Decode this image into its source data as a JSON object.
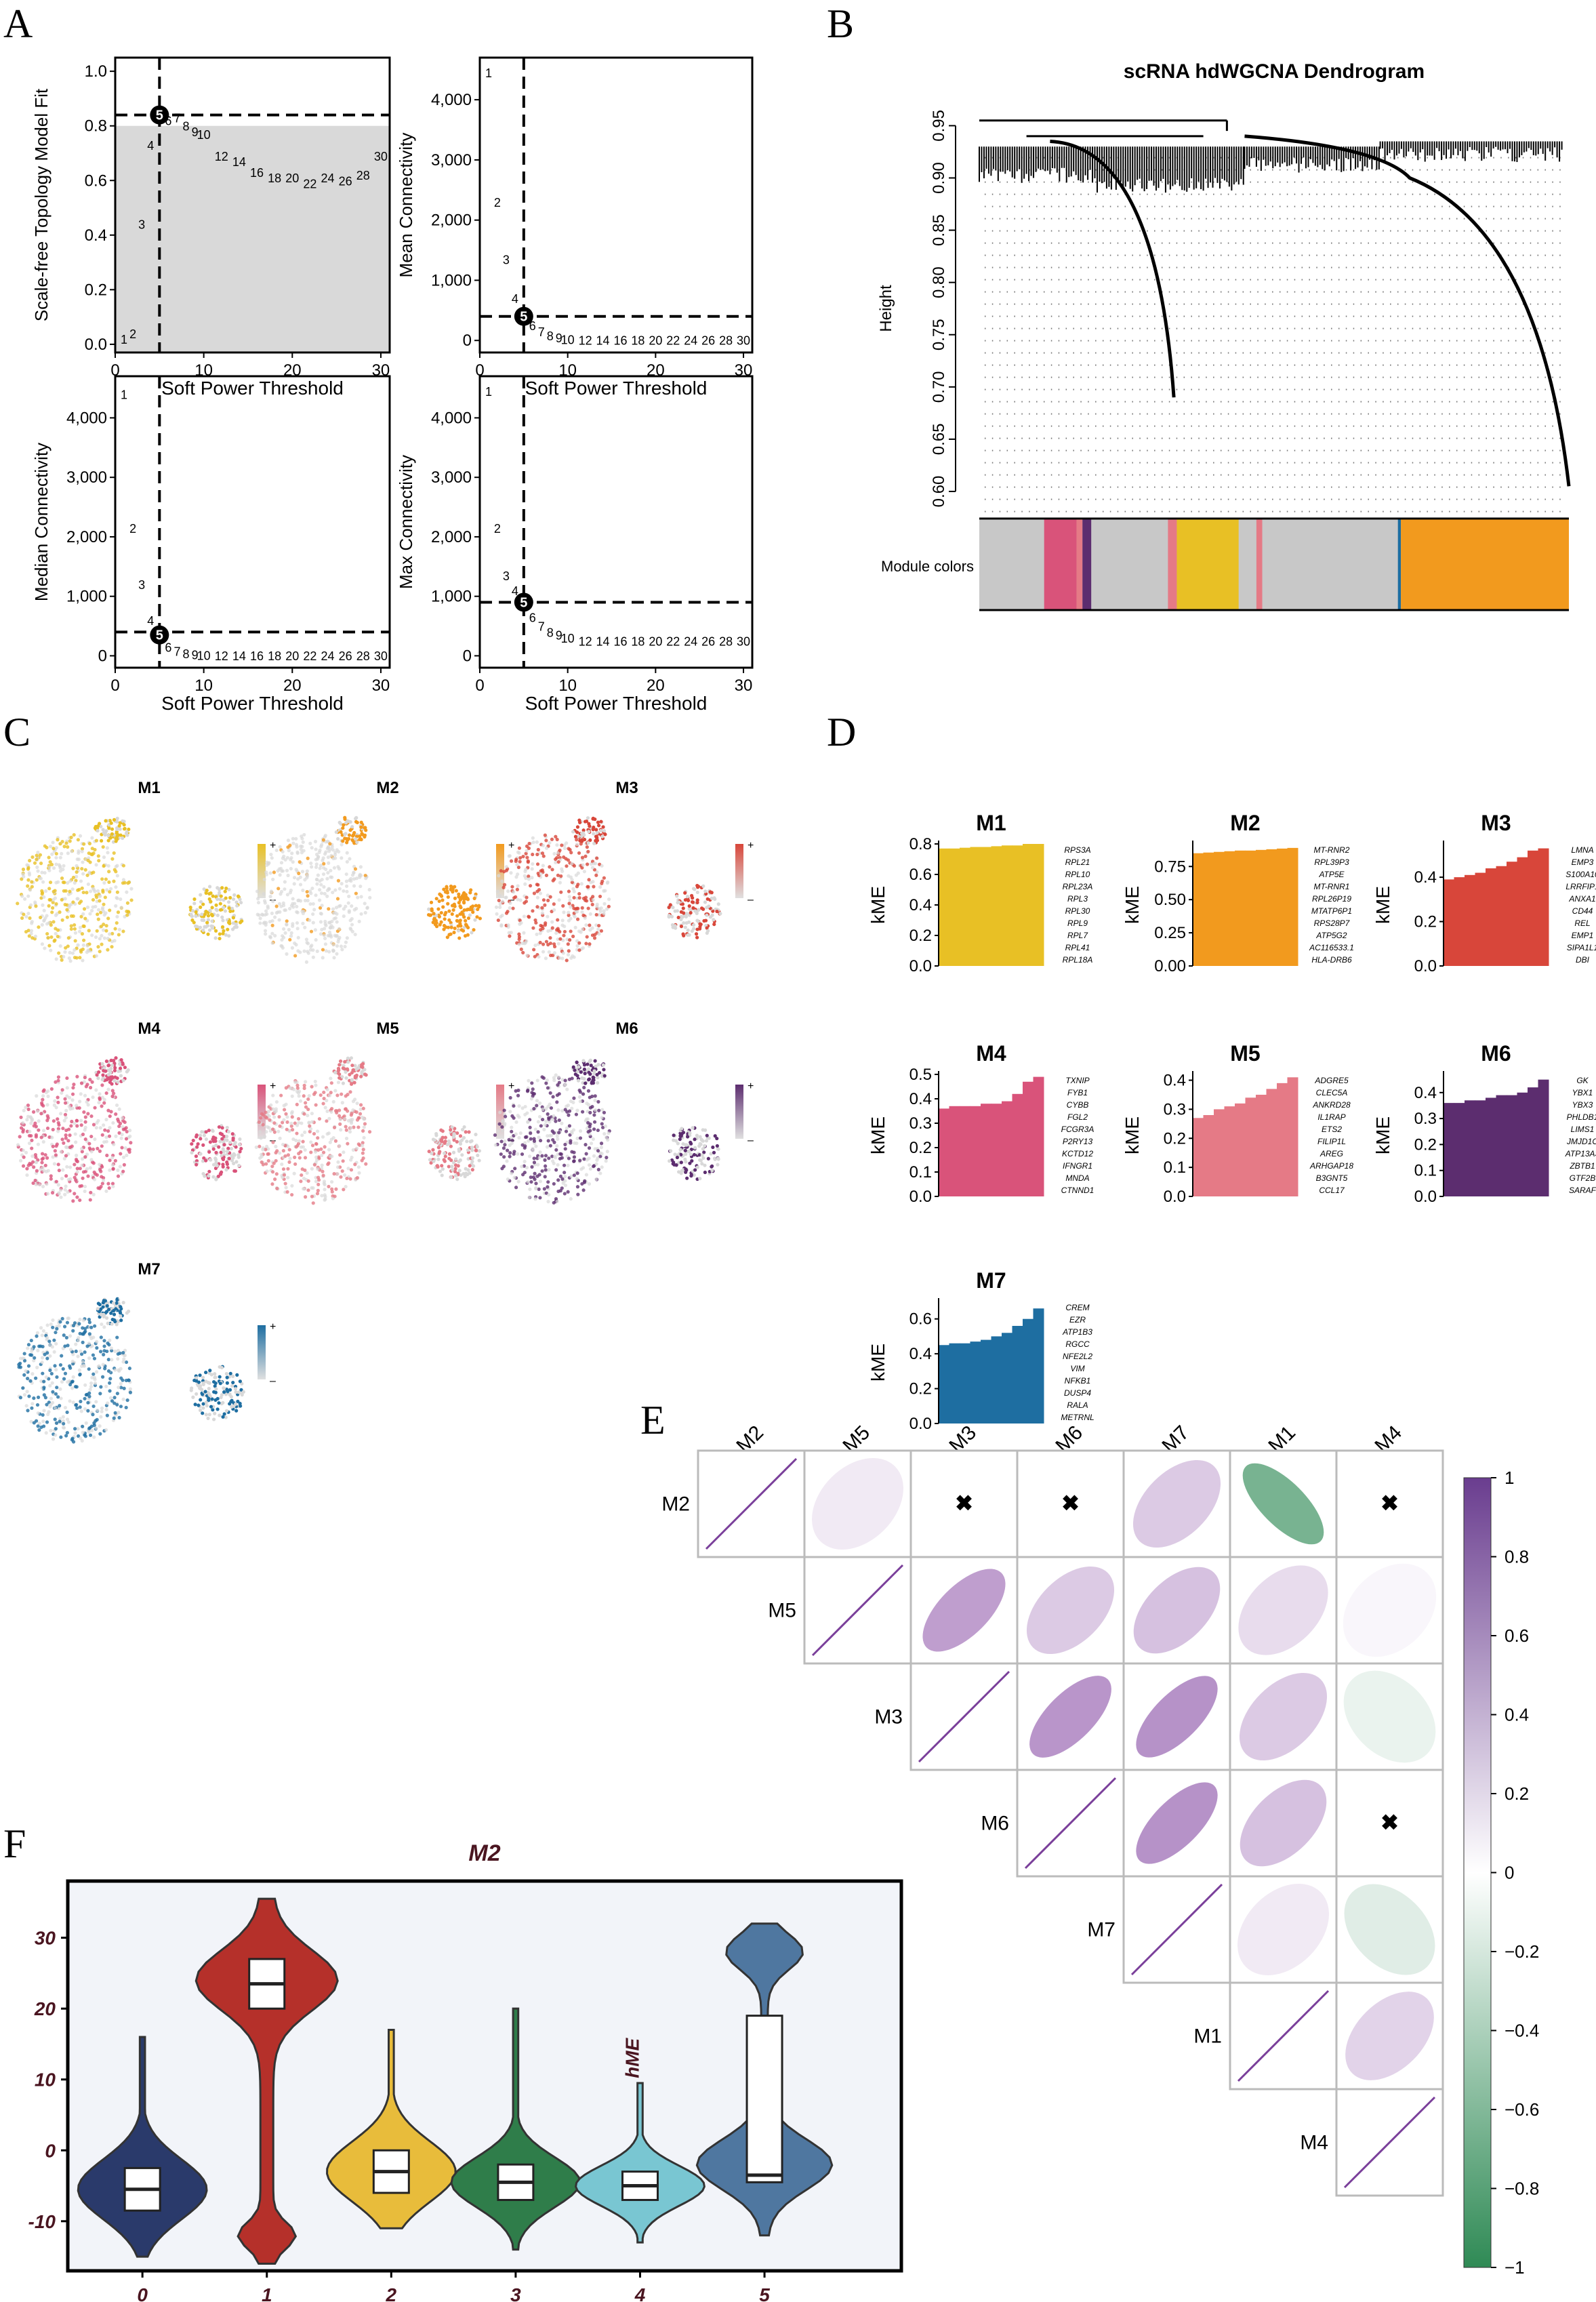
{
  "panel_labels": [
    "A",
    "B",
    "C",
    "D",
    "E",
    "F"
  ],
  "colors": {
    "M1": "#e8c025",
    "M2": "#f29a1e",
    "M3": "#d8463a",
    "M4": "#d9537a",
    "M5": "#e57a86",
    "M6": "#5c2d6f",
    "M7": "#1e6ea1",
    "grey": "#c8c8c8",
    "corr_pos": "#8a4fa6",
    "corr_neg": "#2f8a55"
  },
  "chart_data": [
    {
      "id": "A1",
      "type": "scatter",
      "xlabel": "Soft Power Threshold",
      "ylabel": "Scale-free Topology Model Fit",
      "xlim": [
        0,
        31
      ],
      "ylim": [
        -0.03,
        1.05
      ],
      "xticks": [
        0,
        10,
        20,
        30
      ],
      "yticks": [
        0.0,
        0.2,
        0.4,
        0.6,
        0.8,
        1.0
      ],
      "ytick_labels": [
        "0.0",
        "0.2",
        "0.4",
        "0.6",
        "0.8",
        "1.0"
      ],
      "threshold_x": 5,
      "threshold_y": 0.84,
      "shade_below": 0.8,
      "x": [
        1,
        2,
        3,
        4,
        5,
        6,
        7,
        8,
        9,
        10,
        12,
        14,
        16,
        18,
        20,
        22,
        24,
        26,
        28,
        30
      ],
      "y": [
        0.02,
        0.04,
        0.44,
        0.73,
        0.84,
        0.82,
        0.83,
        0.8,
        0.78,
        0.77,
        0.69,
        0.67,
        0.63,
        0.61,
        0.61,
        0.59,
        0.61,
        0.6,
        0.62,
        0.69
      ]
    },
    {
      "id": "A2",
      "type": "scatter",
      "xlabel": "Soft Power Threshold",
      "ylabel": "Mean Connectivity",
      "xlim": [
        0,
        31
      ],
      "ylim": [
        -200,
        4700
      ],
      "xticks": [
        0,
        10,
        20,
        30
      ],
      "yticks": [
        0,
        1000,
        2000,
        3000,
        4000
      ],
      "ytick_labels": [
        "0",
        "1,000",
        "2,000",
        "3,000",
        "4,000"
      ],
      "threshold_x": 5,
      "threshold_y": 400,
      "x": [
        1,
        2,
        3,
        4,
        5,
        6,
        7,
        8,
        9,
        10,
        12,
        14,
        16,
        18,
        20,
        22,
        24,
        26,
        28,
        30
      ],
      "y": [
        4450,
        2300,
        1350,
        700,
        400,
        250,
        150,
        80,
        50,
        20,
        10,
        10,
        10,
        10,
        10,
        10,
        10,
        10,
        10,
        10
      ]
    },
    {
      "id": "A3",
      "type": "scatter",
      "xlabel": "Soft Power Threshold",
      "ylabel": "Median Connectivity",
      "xlim": [
        0,
        31
      ],
      "ylim": [
        -200,
        4700
      ],
      "xticks": [
        0,
        10,
        20,
        30
      ],
      "yticks": [
        0,
        1000,
        2000,
        3000,
        4000
      ],
      "ytick_labels": [
        "0",
        "1,000",
        "2,000",
        "3,000",
        "4,000"
      ],
      "threshold_x": 5,
      "threshold_y": 400,
      "x": [
        1,
        2,
        3,
        4,
        5,
        6,
        7,
        8,
        9,
        10,
        12,
        14,
        16,
        18,
        20,
        22,
        24,
        26,
        28,
        30
      ],
      "y": [
        4400,
        2150,
        1200,
        600,
        350,
        150,
        80,
        40,
        20,
        10,
        5,
        5,
        5,
        5,
        5,
        5,
        5,
        5,
        5,
        5
      ]
    },
    {
      "id": "A4",
      "type": "scatter",
      "xlabel": "Soft Power Threshold",
      "ylabel": "Max Connectivity",
      "xlim": [
        0,
        31
      ],
      "ylim": [
        -200,
        4700
      ],
      "xticks": [
        0,
        10,
        20,
        30
      ],
      "yticks": [
        0,
        1000,
        2000,
        3000,
        4000
      ],
      "ytick_labels": [
        "0",
        "1,000",
        "2,000",
        "3,000",
        "4,000"
      ],
      "threshold_x": 5,
      "threshold_y": 900,
      "x": [
        1,
        2,
        3,
        4,
        5,
        6,
        7,
        8,
        9,
        10,
        12,
        14,
        16,
        18,
        20,
        22,
        24,
        26,
        28,
        30
      ],
      "y": [
        4450,
        2150,
        1350,
        1100,
        900,
        650,
        500,
        400,
        350,
        300,
        250,
        250,
        250,
        250,
        250,
        250,
        250,
        250,
        250,
        250
      ]
    },
    {
      "id": "B",
      "type": "dendrogram",
      "title": "scRNA hdWGCNA Dendrogram",
      "ylabel": "Height",
      "ylim": [
        0.6,
        0.96
      ],
      "yticks": [
        0.6,
        0.65,
        0.7,
        0.75,
        0.8,
        0.85,
        0.9,
        0.95
      ],
      "ytick_labels": [
        "0.60",
        "0.65",
        "0.70",
        "0.75",
        "0.80",
        "0.85",
        "0.90",
        "0.95"
      ],
      "color_bar_label": "Module colors",
      "color_segments": [
        {
          "module": "grey",
          "start": 0.0,
          "end": 0.11
        },
        {
          "module": "M4",
          "start": 0.11,
          "end": 0.165
        },
        {
          "module": "M5",
          "start": 0.165,
          "end": 0.175
        },
        {
          "module": "M6",
          "start": 0.175,
          "end": 0.19
        },
        {
          "module": "grey",
          "start": 0.19,
          "end": 0.32
        },
        {
          "module": "M5",
          "start": 0.32,
          "end": 0.335
        },
        {
          "module": "M1",
          "start": 0.335,
          "end": 0.44
        },
        {
          "module": "grey",
          "start": 0.44,
          "end": 0.47
        },
        {
          "module": "M5",
          "start": 0.47,
          "end": 0.48
        },
        {
          "module": "grey",
          "start": 0.48,
          "end": 0.71
        },
        {
          "module": "M7",
          "start": 0.71,
          "end": 0.715
        },
        {
          "module": "M2",
          "start": 0.715,
          "end": 1.0
        }
      ]
    },
    {
      "id": "D",
      "type": "bar",
      "subplots": [
        {
          "module": "M1",
          "ylabel": "kME",
          "ylim": [
            0,
            0.8
          ],
          "yticks": [
            0.0,
            0.2,
            0.4,
            0.6,
            0.8
          ],
          "ytick_labels": [
            "0.0",
            "0.2",
            "0.4",
            "0.6",
            "0.8"
          ],
          "values": [
            0.77,
            0.77,
            0.775,
            0.78,
            0.78,
            0.785,
            0.79,
            0.79,
            0.8,
            0.8
          ],
          "genes": [
            "RPS3A",
            "RPL21",
            "RPL10",
            "RPL23A",
            "RPL3",
            "RPL30",
            "RPL9",
            "RPL7",
            "RPL41",
            "RPL18A"
          ]
        },
        {
          "module": "M2",
          "ylabel": "kME",
          "ylim": [
            0,
            0.92
          ],
          "yticks": [
            0.0,
            0.25,
            0.5,
            0.75
          ],
          "ytick_labels": [
            "0.00",
            "0.25",
            "0.50",
            "0.75"
          ],
          "values": [
            0.85,
            0.855,
            0.86,
            0.865,
            0.87,
            0.87,
            0.875,
            0.88,
            0.885,
            0.89
          ],
          "genes": [
            "MT-RNR2",
            "RPL39P3",
            "ATP5E",
            "MT-RNR1",
            "RPL26P19",
            "MTATP6P1",
            "RPS28P7",
            "ATP5G2",
            "AC116533.1",
            "HLA-DRB6"
          ]
        },
        {
          "module": "M3",
          "ylabel": "kME",
          "ylim": [
            0,
            0.55
          ],
          "yticks": [
            0.0,
            0.2,
            0.4
          ],
          "ytick_labels": [
            "0.0",
            "0.2",
            "0.4"
          ],
          "values": [
            0.39,
            0.4,
            0.41,
            0.42,
            0.44,
            0.45,
            0.47,
            0.49,
            0.52,
            0.53
          ],
          "genes": [
            "LMNA",
            "EMP3",
            "S100A10",
            "LRRFIP1",
            "ANXA1",
            "CD44",
            "REL",
            "EMP1",
            "SIPA1L1",
            "DBI"
          ]
        },
        {
          "module": "M4",
          "ylabel": "kME",
          "ylim": [
            0,
            0.5
          ],
          "yticks": [
            0.0,
            0.1,
            0.2,
            0.3,
            0.4,
            0.5
          ],
          "ytick_labels": [
            "0.0",
            "0.1",
            "0.2",
            "0.3",
            "0.4",
            "0.5"
          ],
          "values": [
            0.36,
            0.37,
            0.37,
            0.37,
            0.38,
            0.38,
            0.39,
            0.42,
            0.47,
            0.49
          ],
          "genes": [
            "TXNIP",
            "FYB1",
            "CYBB",
            "FGL2",
            "FCGR3A",
            "P2RY13",
            "KCTD12",
            "IFNGR1",
            "MNDA",
            "CTNND1"
          ]
        },
        {
          "module": "M5",
          "ylabel": "kME",
          "ylim": [
            0,
            0.42
          ],
          "yticks": [
            0.0,
            0.1,
            0.2,
            0.3,
            0.4
          ],
          "ytick_labels": [
            "0.0",
            "0.1",
            "0.2",
            "0.3",
            "0.4"
          ],
          "values": [
            0.27,
            0.28,
            0.3,
            0.31,
            0.32,
            0.34,
            0.35,
            0.37,
            0.39,
            0.41
          ],
          "genes": [
            "ADGRE5",
            "CLEC5A",
            "ANKRD28",
            "IL1RAP",
            "ETS2",
            "FILIP1L",
            "AREG",
            "ARHGAP18",
            "B3GNT5",
            "CCL17"
          ]
        },
        {
          "module": "M6",
          "ylabel": "kME",
          "ylim": [
            0,
            0.47
          ],
          "yticks": [
            0.0,
            0.1,
            0.2,
            0.3,
            0.4
          ],
          "ytick_labels": [
            "0.0",
            "0.1",
            "0.2",
            "0.3",
            "0.4"
          ],
          "values": [
            0.36,
            0.36,
            0.37,
            0.37,
            0.38,
            0.39,
            0.39,
            0.4,
            0.42,
            0.45
          ],
          "genes": [
            "GK",
            "YBX1",
            "YBX3",
            "PHLDB1",
            "LIMS1",
            "JMJD1C",
            "ATP13A3",
            "ZBTB1",
            "GTF2B",
            "SARAF"
          ]
        },
        {
          "module": "M7",
          "ylabel": "kME",
          "ylim": [
            0,
            0.7
          ],
          "yticks": [
            0.0,
            0.2,
            0.4,
            0.6
          ],
          "ytick_labels": [
            "0.0",
            "0.2",
            "0.4",
            "0.6"
          ],
          "values": [
            0.45,
            0.46,
            0.46,
            0.47,
            0.48,
            0.5,
            0.52,
            0.56,
            0.6,
            0.66
          ],
          "genes": [
            "CREM",
            "EZR",
            "ATP1B3",
            "RGCC",
            "NFE2L2",
            "VIM",
            "NFKB1",
            "DUSP4",
            "RALA",
            "METRNL"
          ]
        }
      ]
    },
    {
      "id": "E",
      "type": "heatmap",
      "labels": [
        "M2",
        "M5",
        "M3",
        "M6",
        "M7",
        "M1",
        "M4"
      ],
      "matrix": [
        [
          1,
          0.12,
          0.0,
          0.0,
          0.3,
          -0.65,
          0.0
        ],
        [
          0.12,
          1,
          0.55,
          0.3,
          0.35,
          0.2,
          0.05
        ],
        [
          0.0,
          0.55,
          1,
          0.6,
          0.62,
          0.3,
          -0.1
        ],
        [
          0.0,
          0.3,
          0.6,
          1,
          0.62,
          0.35,
          0.0
        ],
        [
          0.3,
          0.35,
          0.62,
          0.62,
          1,
          0.12,
          -0.15
        ],
        [
          -0.65,
          0.2,
          0.3,
          0.35,
          0.12,
          1,
          0.25
        ],
        [
          0.0,
          0.05,
          -0.1,
          0.0,
          -0.15,
          0.25,
          1
        ]
      ],
      "nonsignificant": [
        [
          0,
          2
        ],
        [
          0,
          3
        ],
        [
          0,
          6
        ],
        [
          3,
          6
        ]
      ],
      "legend_ticks": [
        1,
        0.8,
        0.6,
        0.4,
        0.2,
        0,
        -0.2,
        -0.4,
        -0.6,
        -0.8,
        -1
      ],
      "legend_tick_labels": [
        "1",
        "0.8",
        "0.6",
        "0.4",
        "0.2",
        "0",
        "−0.2",
        "−0.4",
        "−0.6",
        "−0.8",
        "−1"
      ]
    },
    {
      "id": "F",
      "type": "violin",
      "title": "M2",
      "ylabel": "hME",
      "ylim": [
        -17,
        38
      ],
      "yticks": [
        -10,
        0,
        10,
        20,
        30
      ],
      "ytick_labels": [
        "-10",
        "0",
        "10",
        "20",
        "30"
      ],
      "categories": [
        "0",
        "1",
        "2",
        "3",
        "4",
        "5"
      ],
      "violins": [
        {
          "cluster": "0",
          "color": "#2a3a6b",
          "median": -5.5,
          "q1": -8.5,
          "q3": -2.5,
          "min": -15,
          "max": 16
        },
        {
          "cluster": "1",
          "color": "#b5302a",
          "median": 23.5,
          "q1": 20,
          "q3": 27,
          "min": -16,
          "max": 35.5
        },
        {
          "cluster": "2",
          "color": "#e8bc3b",
          "median": -3,
          "q1": -6,
          "q3": 0,
          "min": -11,
          "max": 17
        },
        {
          "cluster": "3",
          "color": "#2f7d4a",
          "median": -4.5,
          "q1": -7,
          "q3": -2,
          "min": -14,
          "max": 20
        },
        {
          "cluster": "4",
          "color": "#79c6d2",
          "median": -5,
          "q1": -7,
          "q3": -3,
          "min": -13,
          "max": 9.5
        },
        {
          "cluster": "5",
          "color": "#4f77a0",
          "median": -3.5,
          "q1": -4.5,
          "q3": 19,
          "min": -12,
          "max": 32
        }
      ]
    }
  ],
  "panel_C": {
    "modules": [
      "M1",
      "M2",
      "M3",
      "M4",
      "M5",
      "M6",
      "M7"
    ],
    "legend_plus": "+",
    "legend_minus": "–"
  }
}
